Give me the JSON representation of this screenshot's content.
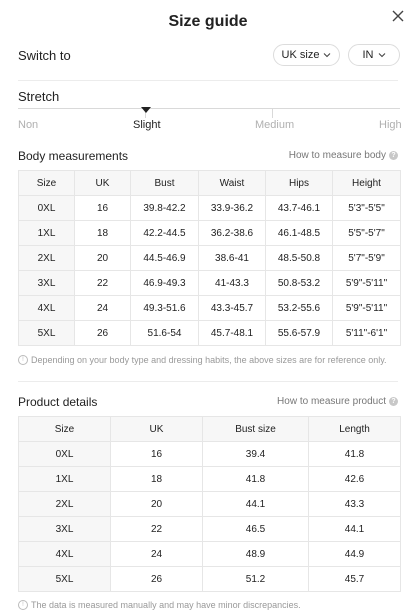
{
  "header": {
    "title": "Size guide"
  },
  "switch": {
    "label": "Switch to",
    "region": "UK size",
    "unit": "IN"
  },
  "stretch": {
    "label": "Stretch",
    "options": [
      "Non",
      "Slight",
      "Medium",
      "High"
    ],
    "selected": "Slight"
  },
  "body": {
    "title": "Body measurements",
    "how_link": "How to measure body",
    "headers": [
      "Size",
      "UK",
      "Bust",
      "Waist",
      "Hips",
      "Height"
    ],
    "rows": [
      [
        "0XL",
        "16",
        "39.8-42.2",
        "33.9-36.2",
        "43.7-46.1",
        "5'3\"-5'5\""
      ],
      [
        "1XL",
        "18",
        "42.2-44.5",
        "36.2-38.6",
        "46.1-48.5",
        "5'5\"-5'7\""
      ],
      [
        "2XL",
        "20",
        "44.5-46.9",
        "38.6-41",
        "48.5-50.8",
        "5'7\"-5'9\""
      ],
      [
        "3XL",
        "22",
        "46.9-49.3",
        "41-43.3",
        "50.8-53.2",
        "5'9\"-5'11\""
      ],
      [
        "4XL",
        "24",
        "49.3-51.6",
        "43.3-45.7",
        "53.2-55.6",
        "5'9\"-5'11\""
      ],
      [
        "5XL",
        "26",
        "51.6-54",
        "45.7-48.1",
        "55.6-57.9",
        "5'11\"-6'1\""
      ]
    ],
    "note": "Depending on your body type and dressing habits, the above sizes are for reference only."
  },
  "product": {
    "title": "Product details",
    "how_link": "How to measure product",
    "headers": [
      "Size",
      "UK",
      "Bust size",
      "Length"
    ],
    "rows": [
      [
        "0XL",
        "16",
        "39.4",
        "41.8"
      ],
      [
        "1XL",
        "18",
        "41.8",
        "42.6"
      ],
      [
        "2XL",
        "20",
        "44.1",
        "43.3"
      ],
      [
        "3XL",
        "22",
        "46.5",
        "44.1"
      ],
      [
        "4XL",
        "24",
        "48.9",
        "44.9"
      ],
      [
        "5XL",
        "26",
        "51.2",
        "45.7"
      ]
    ],
    "note": "The data is measured manually and may have minor discrepancies."
  }
}
